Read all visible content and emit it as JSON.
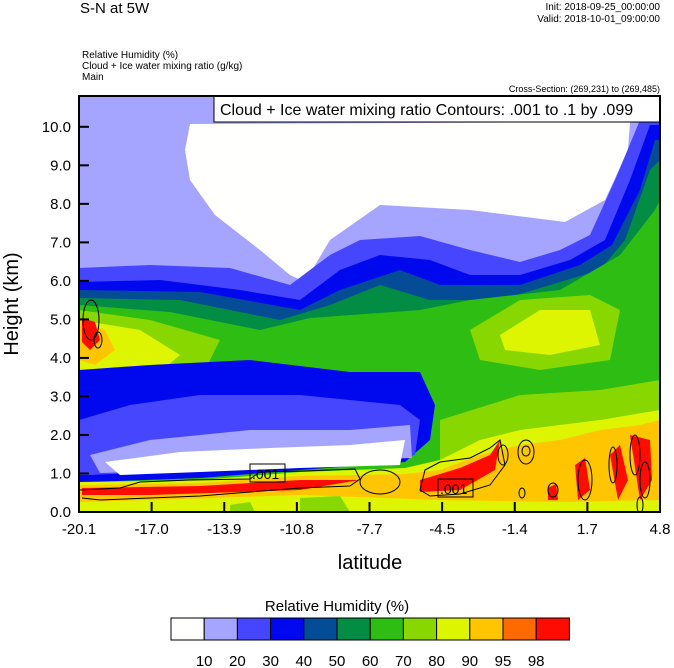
{
  "header": {
    "title": "S-N at 5W",
    "init": "Init: 2018-09-25_00:00:00",
    "valid": "Valid: 2018-10-01_09:00:00",
    "fields": [
      "Relative Humidity   (%)",
      "Cloud + Ice water mixing ratio   (g/kg)",
      "Main"
    ],
    "cross_section": "Cross-Section: (269,231) to (269,485)"
  },
  "chart_data": {
    "type": "heatmap",
    "title": "Relative Humidity (%) with Cloud + Ice water mixing ratio contours",
    "contour_label": "Cloud + Ice water mixing ratio Contours: .001 to .1 by .099",
    "contour_values": [
      ".001",
      ".001"
    ],
    "xlabel": "latitude",
    "ylabel": "Height (km)",
    "xticks": [
      "-20.1",
      "-17.0",
      "-13.9",
      "-10.8",
      "-7.7",
      "-4.5",
      "-1.4",
      "1.7",
      "4.8"
    ],
    "xlim": [
      -20.1,
      4.8
    ],
    "yticks": [
      "0.0",
      "1.0",
      "2.0",
      "3.0",
      "4.0",
      "5.0",
      "6.0",
      "7.0",
      "8.0",
      "9.0",
      "10.0"
    ],
    "ylim": [
      0,
      10.8
    ],
    "colorbar": {
      "title": "Relative Humidity  (%)",
      "levels": [
        "10",
        "20",
        "30",
        "40",
        "50",
        "60",
        "70",
        "80",
        "90",
        "95",
        "98"
      ],
      "colors": [
        "#fffffd",
        "#a5a5ff",
        "#4646ff",
        "#0008ee",
        "#044c96",
        "#028c44",
        "#2ebd12",
        "#88d700",
        "#ddf500",
        "#ffc600",
        "#ff6a00",
        "#ff0c00"
      ]
    }
  }
}
